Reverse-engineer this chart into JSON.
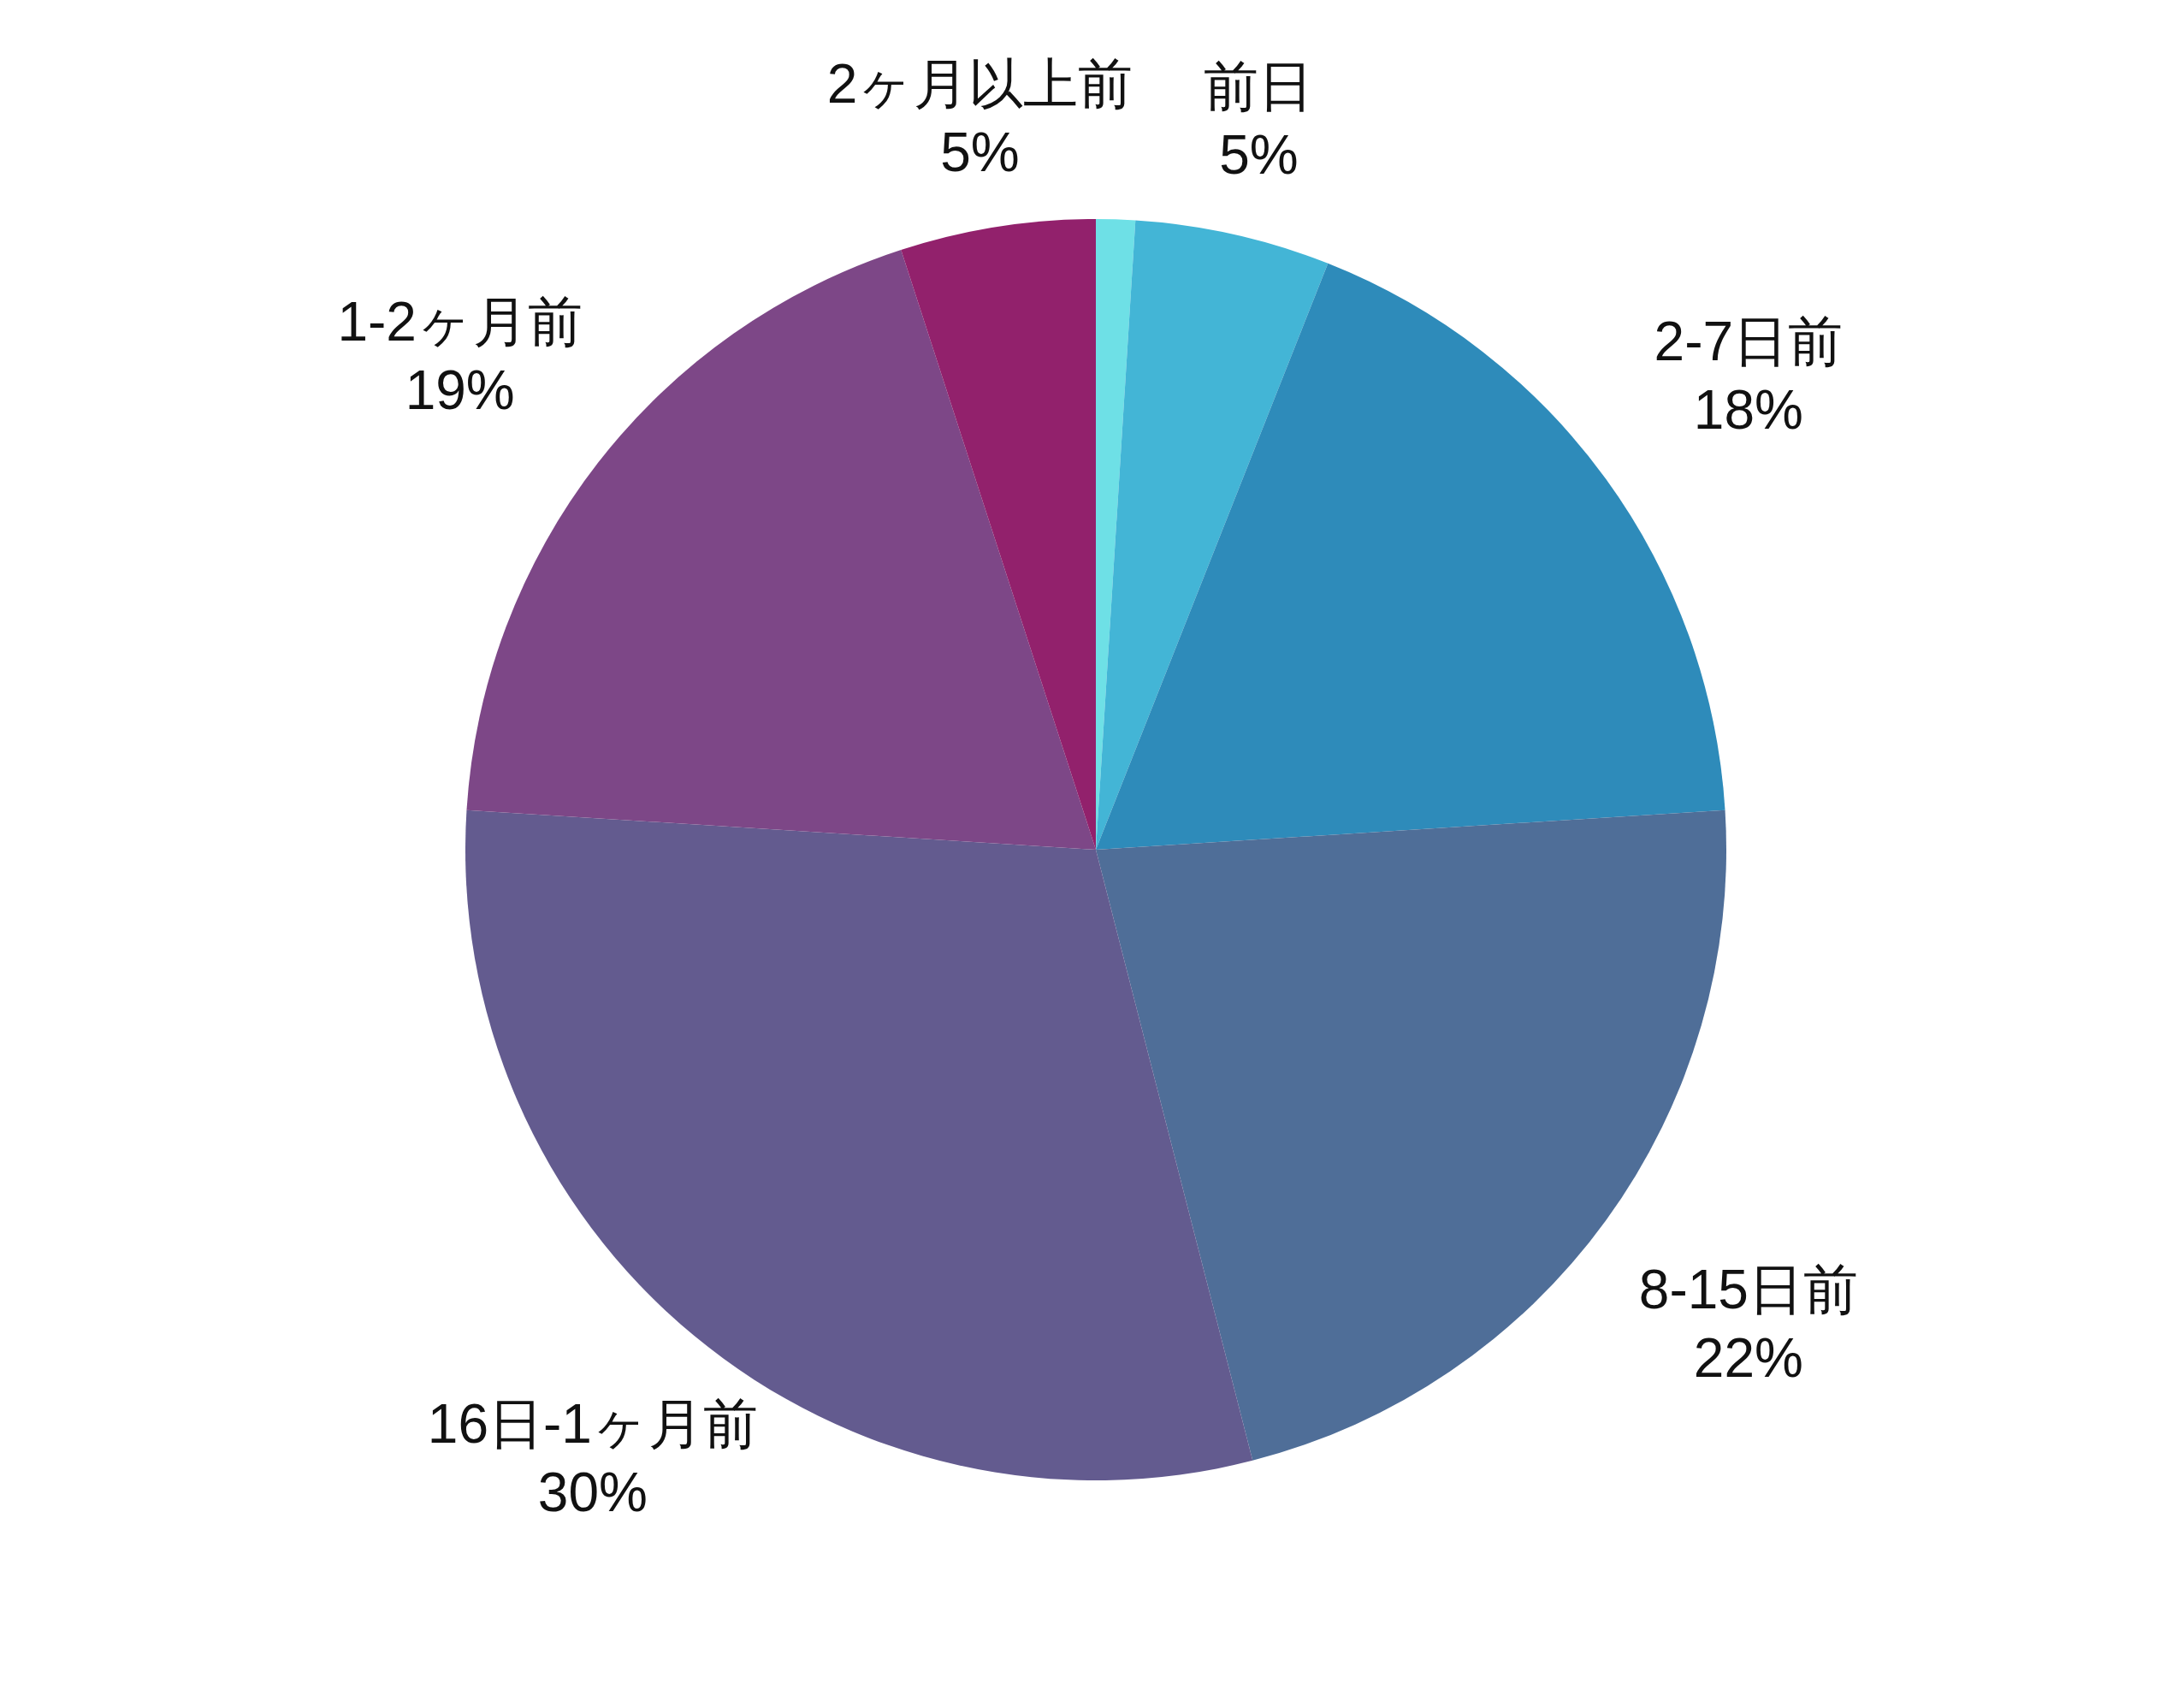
{
  "chart_data": {
    "type": "pie",
    "categories": [
      null,
      "前日",
      "2-7日前",
      "8-15日前",
      "16日-1ヶ月前",
      "1-2ヶ月前",
      "2ヶ月以上前"
    ],
    "values": [
      1,
      5,
      18,
      22,
      30,
      19,
      5
    ],
    "colors": [
      "#6ee0e6",
      "#43b5d6",
      "#2e8bba",
      "#4f6e98",
      "#635b8f",
      "#7d4787",
      "#92216c"
    ],
    "value_labels": [
      null,
      "5%",
      "18%",
      "22%",
      "30%",
      "19%",
      "5%"
    ]
  }
}
